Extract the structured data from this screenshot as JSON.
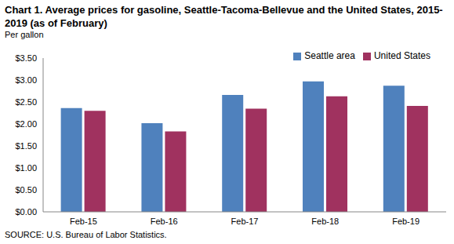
{
  "chart_data": {
    "type": "bar",
    "title": "Chart 1. Average prices for gasoline, Seattle-Tacoma-Bellevue and the United States, 2015-2019 (as of February)",
    "ylabel": "Per gallon",
    "source": "SOURCE: U.S. Bureau of Labor Statistics.",
    "categories": [
      "Feb-15",
      "Feb-16",
      "Feb-17",
      "Feb-18",
      "Feb-19"
    ],
    "series": [
      {
        "name": "Seattle area",
        "color": "#4F81BD",
        "values": [
          2.36,
          2.02,
          2.66,
          2.97,
          2.87
        ]
      },
      {
        "name": "United States",
        "color": "#A0325F",
        "values": [
          2.3,
          1.83,
          2.35,
          2.63,
          2.41
        ]
      }
    ],
    "ylim": [
      0,
      3.5
    ],
    "yticks": [
      {
        "value": 0,
        "label": "$0.00"
      },
      {
        "value": 0.5,
        "label": "$0.50"
      },
      {
        "value": 1,
        "label": "$1.00"
      },
      {
        "value": 1.5,
        "label": "$1.50"
      },
      {
        "value": 2,
        "label": "$2.00"
      },
      {
        "value": 2.5,
        "label": "$2.50"
      },
      {
        "value": 3,
        "label": "$3.00"
      },
      {
        "value": 3.5,
        "label": "$3.50"
      }
    ],
    "grid": false,
    "legend": "upper right"
  }
}
